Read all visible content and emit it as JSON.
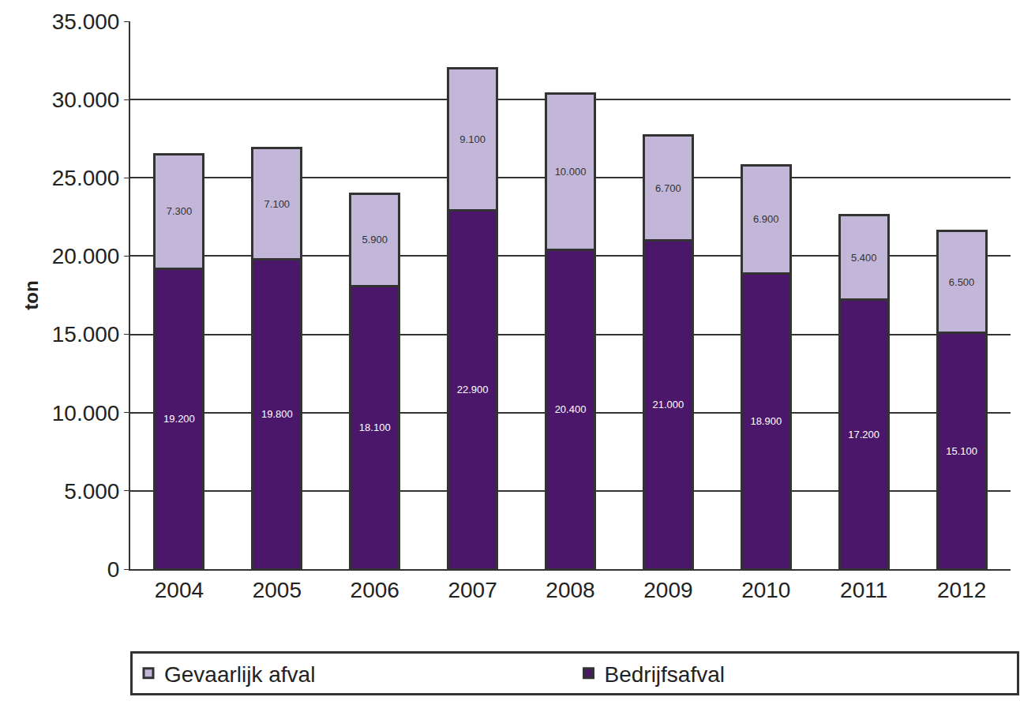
{
  "chart_data": {
    "type": "bar",
    "stacked": true,
    "data_labels": true,
    "grid": true,
    "legend": "bottom",
    "y_label": "ton",
    "categories": [
      "2004",
      "2005",
      "2006",
      "2007",
      "2008",
      "2009",
      "2010",
      "2011",
      "2012"
    ],
    "series": [
      {
        "name": "Bedrijfsafval",
        "color": "#4b176b",
        "values": [
          19200,
          19800,
          18100,
          22900,
          20400,
          21000,
          18900,
          17200,
          15100
        ],
        "value_labels": [
          "19.200",
          "19.800",
          "18.100",
          "22.900",
          "20.400",
          "21.000",
          "18.900",
          "17.200",
          "15.100"
        ]
      },
      {
        "name": "Gevaarlijk afval",
        "color": "#c3b7d9",
        "values": [
          7300,
          7100,
          5900,
          9100,
          10000,
          6700,
          6900,
          5400,
          6500
        ],
        "value_labels": [
          "7.300",
          "7.100",
          "5.900",
          "9.100",
          "10.000",
          "6.700",
          "6.900",
          "5.400",
          "6.500"
        ]
      }
    ],
    "ylim": [
      0,
      35000
    ],
    "yticks": [
      0,
      {
        "value": 5000,
        "label": "5.000"
      },
      {
        "value": 10000,
        "label": "10.000"
      },
      {
        "value": 15000,
        "label": "15.000"
      },
      {
        "value": 20000,
        "label": "20.000"
      },
      {
        "value": 25000,
        "label": "25.000"
      },
      {
        "value": 30000,
        "label": "30.000"
      },
      {
        "value": 35000,
        "label": "35.000"
      }
    ]
  }
}
